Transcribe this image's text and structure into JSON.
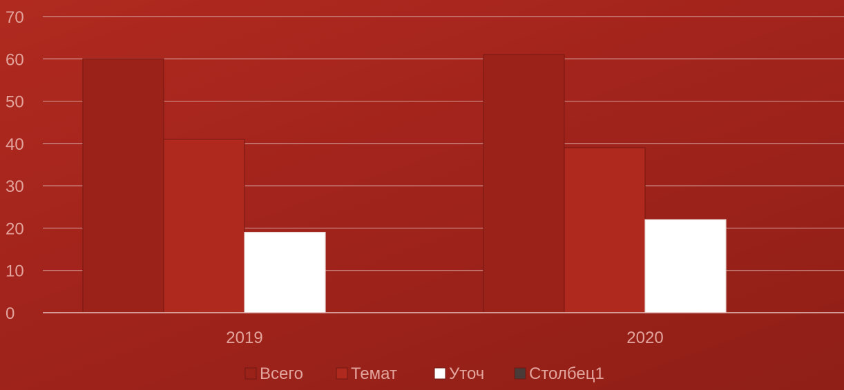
{
  "chart_data": {
    "type": "bar",
    "categories": [
      "2019",
      "2020"
    ],
    "series": [
      {
        "name": "Всего",
        "values": [
          60,
          61
        ],
        "color": "#9b2219"
      },
      {
        "name": "Темат",
        "values": [
          41,
          39
        ],
        "color": "#b0291e"
      },
      {
        "name": "Уточ",
        "values": [
          19,
          22
        ],
        "color": "#ffffff"
      },
      {
        "name": "Столбец1",
        "values": [
          0,
          0
        ],
        "color": "#4a3a38"
      }
    ],
    "yticks": [
      "0",
      "10",
      "20",
      "30",
      "40",
      "50",
      "60",
      "70"
    ],
    "ylim": [
      0,
      70
    ],
    "grid": true,
    "legend": "bottom"
  }
}
